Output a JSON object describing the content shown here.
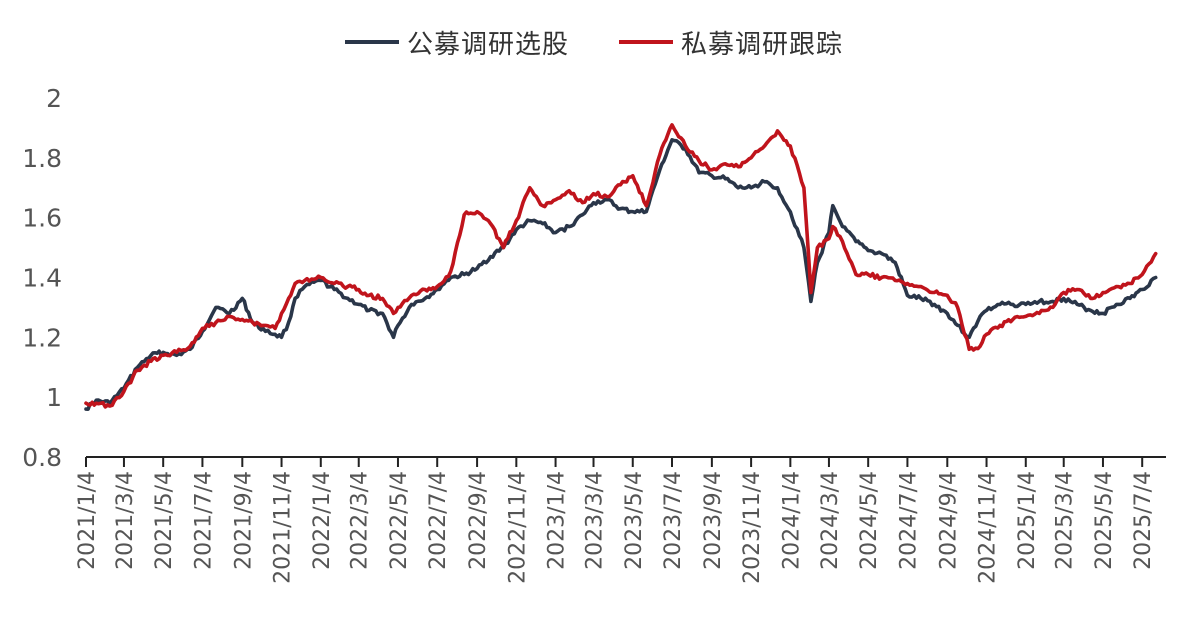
{
  "colors": {
    "public": "#2a3649",
    "private": "#c0141c",
    "axis": "#222222",
    "tick_label": "#555555"
  },
  "legend": {
    "public_label": "公募调研选股",
    "private_label": "私募调研跟踪"
  },
  "chart_data": {
    "type": "line",
    "title": "",
    "xlabel": "",
    "ylabel": "",
    "ylim": [
      0.8,
      2.0
    ],
    "y_ticks": [
      "0.8",
      "1",
      "1.2",
      "1.4",
      "1.6",
      "1.8",
      "2"
    ],
    "x_ticks": [
      "2021/1/4",
      "2021/3/4",
      "2021/5/4",
      "2021/7/4",
      "2021/9/4",
      "2021/11/4",
      "2022/1/4",
      "2022/3/4",
      "2022/5/4",
      "2022/7/4",
      "2022/9/4",
      "2022/11/4",
      "2023/1/4",
      "2023/3/4",
      "2023/5/4",
      "2023/7/4",
      "2023/9/4",
      "2023/11/4",
      "2024/1/4",
      "2024/3/4",
      "2024/5/4",
      "2024/7/4",
      "2024/9/4",
      "2024/11/4",
      "2025/1/4",
      "2025/3/4",
      "2025/5/4",
      "2025/7/4"
    ],
    "grid": false,
    "legend_position": "top-center",
    "series": [
      {
        "name": "公募调研选股",
        "color": "#2a3649",
        "points": [
          [
            "2021/1/4",
            0.96
          ],
          [
            "2021/1/20",
            0.99
          ],
          [
            "2021/2/10",
            0.98
          ],
          [
            "2021/3/4",
            1.03
          ],
          [
            "2021/3/25",
            1.1
          ],
          [
            "2021/4/15",
            1.14
          ],
          [
            "2021/5/4",
            1.15
          ],
          [
            "2021/5/25",
            1.14
          ],
          [
            "2021/6/15",
            1.16
          ],
          [
            "2021/7/4",
            1.22
          ],
          [
            "2021/7/25",
            1.3
          ],
          [
            "2021/8/15",
            1.28
          ],
          [
            "2021/9/4",
            1.33
          ],
          [
            "2021/9/20",
            1.25
          ],
          [
            "2021/10/10",
            1.22
          ],
          [
            "2021/10/25",
            1.21
          ],
          [
            "2021/11/4",
            1.2
          ],
          [
            "2021/11/15",
            1.25
          ],
          [
            "2021/11/25",
            1.33
          ],
          [
            "2021/12/10",
            1.37
          ],
          [
            "2022/1/4",
            1.39
          ],
          [
            "2022/1/25",
            1.36
          ],
          [
            "2022/2/15",
            1.33
          ],
          [
            "2022/3/4",
            1.31
          ],
          [
            "2022/3/20",
            1.29
          ],
          [
            "2022/4/10",
            1.28
          ],
          [
            "2022/4/27",
            1.2
          ],
          [
            "2022/5/4",
            1.24
          ],
          [
            "2022/5/25",
            1.31
          ],
          [
            "2022/6/15",
            1.33
          ],
          [
            "2022/7/4",
            1.36
          ],
          [
            "2022/7/25",
            1.4
          ],
          [
            "2022/8/15",
            1.41
          ],
          [
            "2022/9/4",
            1.43
          ],
          [
            "2022/9/25",
            1.47
          ],
          [
            "2022/10/15",
            1.5
          ],
          [
            "2022/11/4",
            1.56
          ],
          [
            "2022/11/25",
            1.59
          ],
          [
            "2022/12/15",
            1.58
          ],
          [
            "2023/1/4",
            1.55
          ],
          [
            "2023/1/25",
            1.57
          ],
          [
            "2023/2/15",
            1.61
          ],
          [
            "2023/3/4",
            1.65
          ],
          [
            "2023/3/25",
            1.66
          ],
          [
            "2023/4/15",
            1.63
          ],
          [
            "2023/5/4",
            1.62
          ],
          [
            "2023/5/25",
            1.62
          ],
          [
            "2023/6/15",
            1.76
          ],
          [
            "2023/7/4",
            1.86
          ],
          [
            "2023/7/25",
            1.83
          ],
          [
            "2023/8/15",
            1.75
          ],
          [
            "2023/9/4",
            1.74
          ],
          [
            "2023/9/25",
            1.73
          ],
          [
            "2023/10/15",
            1.7
          ],
          [
            "2023/11/4",
            1.7
          ],
          [
            "2023/11/25",
            1.72
          ],
          [
            "2023/12/15",
            1.7
          ],
          [
            "2024/1/4",
            1.62
          ],
          [
            "2024/1/25",
            1.5
          ],
          [
            "2024/2/5",
            1.32
          ],
          [
            "2024/2/15",
            1.45
          ],
          [
            "2024/3/4",
            1.55
          ],
          [
            "2024/3/10",
            1.64
          ],
          [
            "2024/3/25",
            1.57
          ],
          [
            "2024/4/15",
            1.52
          ],
          [
            "2024/5/4",
            1.49
          ],
          [
            "2024/5/25",
            1.48
          ],
          [
            "2024/6/15",
            1.45
          ],
          [
            "2024/7/4",
            1.34
          ],
          [
            "2024/7/25",
            1.33
          ],
          [
            "2024/8/15",
            1.31
          ],
          [
            "2024/9/4",
            1.28
          ],
          [
            "2024/9/20",
            1.24
          ],
          [
            "2024/10/8",
            1.2
          ],
          [
            "2024/10/25",
            1.27
          ],
          [
            "2024/11/4",
            1.29
          ],
          [
            "2024/11/25",
            1.31
          ],
          [
            "2024/12/15",
            1.31
          ],
          [
            "2025/1/4",
            1.31
          ],
          [
            "2025/1/25",
            1.32
          ],
          [
            "2025/2/15",
            1.32
          ],
          [
            "2025/3/4",
            1.33
          ],
          [
            "2025/3/25",
            1.31
          ],
          [
            "2025/4/15",
            1.29
          ],
          [
            "2025/5/4",
            1.28
          ],
          [
            "2025/5/25",
            1.31
          ],
          [
            "2025/6/15",
            1.33
          ],
          [
            "2025/7/4",
            1.36
          ],
          [
            "2025/7/25",
            1.4
          ]
        ]
      },
      {
        "name": "私募调研跟踪",
        "color": "#c0141c",
        "points": [
          [
            "2021/1/4",
            0.98
          ],
          [
            "2021/1/20",
            0.98
          ],
          [
            "2021/2/10",
            0.97
          ],
          [
            "2021/3/4",
            1.02
          ],
          [
            "2021/3/25",
            1.09
          ],
          [
            "2021/4/15",
            1.12
          ],
          [
            "2021/5/4",
            1.14
          ],
          [
            "2021/5/25",
            1.15
          ],
          [
            "2021/6/15",
            1.17
          ],
          [
            "2021/7/4",
            1.23
          ],
          [
            "2021/7/25",
            1.25
          ],
          [
            "2021/8/15",
            1.27
          ],
          [
            "2021/9/4",
            1.26
          ],
          [
            "2021/9/20",
            1.25
          ],
          [
            "2021/10/10",
            1.24
          ],
          [
            "2021/10/25",
            1.23
          ],
          [
            "2021/11/4",
            1.28
          ],
          [
            "2021/11/15",
            1.33
          ],
          [
            "2021/11/25",
            1.38
          ],
          [
            "2021/12/10",
            1.39
          ],
          [
            "2022/1/4",
            1.4
          ],
          [
            "2022/1/25",
            1.38
          ],
          [
            "2022/2/15",
            1.37
          ],
          [
            "2022/3/4",
            1.36
          ],
          [
            "2022/3/20",
            1.34
          ],
          [
            "2022/4/10",
            1.33
          ],
          [
            "2022/4/27",
            1.28
          ],
          [
            "2022/5/4",
            1.3
          ],
          [
            "2022/5/25",
            1.34
          ],
          [
            "2022/6/15",
            1.36
          ],
          [
            "2022/7/4",
            1.37
          ],
          [
            "2022/7/25",
            1.42
          ],
          [
            "2022/8/15",
            1.61
          ],
          [
            "2022/9/4",
            1.62
          ],
          [
            "2022/9/25",
            1.58
          ],
          [
            "2022/10/15",
            1.5
          ],
          [
            "2022/11/4",
            1.59
          ],
          [
            "2022/11/25",
            1.7
          ],
          [
            "2022/12/15",
            1.64
          ],
          [
            "2023/1/4",
            1.66
          ],
          [
            "2023/1/25",
            1.69
          ],
          [
            "2023/2/15",
            1.65
          ],
          [
            "2023/3/4",
            1.68
          ],
          [
            "2023/3/25",
            1.67
          ],
          [
            "2023/4/15",
            1.71
          ],
          [
            "2023/5/4",
            1.74
          ],
          [
            "2023/5/25",
            1.64
          ],
          [
            "2023/6/15",
            1.81
          ],
          [
            "2023/7/4",
            1.91
          ],
          [
            "2023/7/25",
            1.84
          ],
          [
            "2023/8/15",
            1.79
          ],
          [
            "2023/9/4",
            1.76
          ],
          [
            "2023/9/25",
            1.78
          ],
          [
            "2023/10/15",
            1.77
          ],
          [
            "2023/11/4",
            1.8
          ],
          [
            "2023/11/25",
            1.84
          ],
          [
            "2023/12/15",
            1.89
          ],
          [
            "2024/1/4",
            1.84
          ],
          [
            "2024/1/25",
            1.7
          ],
          [
            "2024/2/5",
            1.35
          ],
          [
            "2024/2/15",
            1.5
          ],
          [
            "2024/3/4",
            1.53
          ],
          [
            "2024/3/10",
            1.57
          ],
          [
            "2024/3/25",
            1.52
          ],
          [
            "2024/4/15",
            1.41
          ],
          [
            "2024/5/4",
            1.41
          ],
          [
            "2024/5/25",
            1.4
          ],
          [
            "2024/6/15",
            1.39
          ],
          [
            "2024/7/4",
            1.38
          ],
          [
            "2024/7/25",
            1.37
          ],
          [
            "2024/8/15",
            1.35
          ],
          [
            "2024/9/4",
            1.34
          ],
          [
            "2024/9/20",
            1.3
          ],
          [
            "2024/10/8",
            1.16
          ],
          [
            "2024/10/25",
            1.17
          ],
          [
            "2024/11/4",
            1.21
          ],
          [
            "2024/11/25",
            1.24
          ],
          [
            "2024/12/15",
            1.26
          ],
          [
            "2025/1/4",
            1.27
          ],
          [
            "2025/1/25",
            1.28
          ],
          [
            "2025/2/15",
            1.3
          ],
          [
            "2025/3/4",
            1.35
          ],
          [
            "2025/3/25",
            1.36
          ],
          [
            "2025/4/15",
            1.33
          ],
          [
            "2025/5/4",
            1.35
          ],
          [
            "2025/5/25",
            1.37
          ],
          [
            "2025/6/15",
            1.38
          ],
          [
            "2025/7/4",
            1.41
          ],
          [
            "2025/7/25",
            1.48
          ]
        ]
      }
    ]
  }
}
